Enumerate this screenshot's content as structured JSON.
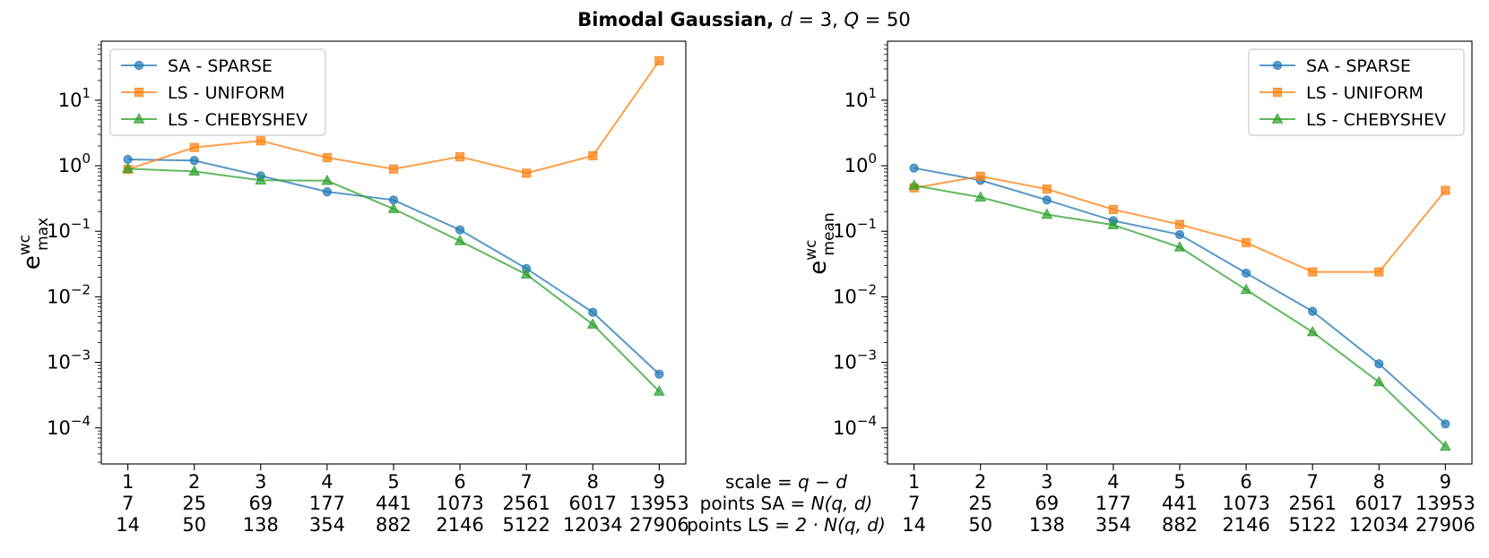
{
  "figure": {
    "title_prefix": "Bimodal Gaussian, ",
    "title_params": [
      "d",
      " = 3, ",
      "Q",
      " = 50"
    ]
  },
  "row_labels": [
    {
      "prefix": "scale = ",
      "math": "q − d"
    },
    {
      "prefix": "points SA = ",
      "math": "N(q, d)"
    },
    {
      "prefix": "points LS = ",
      "math": "2 · N(q, d)"
    }
  ],
  "colors": {
    "SA - SPARSE": "#1f77b4",
    "LS - UNIFORM": "#ff7f0e",
    "LS - CHEBYSHEV": "#2ca02c"
  },
  "chart_data": [
    {
      "type": "line",
      "ylabel": {
        "base": "e",
        "sup": "wc",
        "sub": "max"
      },
      "yscale": "log",
      "yticks": [
        "10^-4",
        "10^-3",
        "10^-2",
        "10^-1",
        "10^0",
        "10^1"
      ],
      "xticks": {
        "scale": [
          "1",
          "2",
          "3",
          "4",
          "5",
          "6",
          "7",
          "8",
          "9"
        ],
        "points_SA": [
          "7",
          "25",
          "69",
          "177",
          "441",
          "1073",
          "2561",
          "6017",
          "13953"
        ],
        "points_LS": [
          "14",
          "50",
          "138",
          "354",
          "882",
          "2146",
          "5122",
          "12034",
          "27906"
        ]
      },
      "x": [
        1,
        2,
        3,
        4,
        5,
        6,
        7,
        8,
        9
      ],
      "legend_position": "upper-left",
      "series": [
        {
          "name": "SA - SPARSE",
          "marker": "circle",
          "values": [
            1.25,
            1.2,
            0.7,
            0.4,
            0.3,
            0.105,
            0.027,
            0.0058,
            0.00066
          ]
        },
        {
          "name": "LS - UNIFORM",
          "marker": "square",
          "values": [
            0.88,
            1.9,
            2.4,
            1.33,
            0.89,
            1.37,
            0.77,
            1.42,
            40.0
          ]
        },
        {
          "name": "LS - CHEBYSHEV",
          "marker": "triangle",
          "values": [
            0.9,
            0.82,
            0.6,
            0.59,
            0.22,
            0.071,
            0.022,
            0.0038,
            0.00036
          ]
        }
      ]
    },
    {
      "type": "line",
      "ylabel": {
        "base": "e",
        "sup": "wc",
        "sub": "mean"
      },
      "yscale": "log",
      "yticks": [
        "10^-4",
        "10^-3",
        "10^-2",
        "10^-1",
        "10^0",
        "10^1"
      ],
      "xticks": {
        "scale": [
          "1",
          "2",
          "3",
          "4",
          "5",
          "6",
          "7",
          "8",
          "9"
        ],
        "points_SA": [
          "7",
          "25",
          "69",
          "177",
          "441",
          "1073",
          "2561",
          "6017",
          "13953"
        ],
        "points_LS": [
          "14",
          "50",
          "138",
          "354",
          "882",
          "2146",
          "5122",
          "12034",
          "27906"
        ]
      },
      "x": [
        1,
        2,
        3,
        4,
        5,
        6,
        7,
        8,
        9
      ],
      "legend_position": "upper-right",
      "series": [
        {
          "name": "SA - SPARSE",
          "marker": "circle",
          "values": [
            0.92,
            0.6,
            0.3,
            0.145,
            0.089,
            0.023,
            0.006,
            0.00095,
            0.000115
          ]
        },
        {
          "name": "LS - UNIFORM",
          "marker": "square",
          "values": [
            0.46,
            0.69,
            0.44,
            0.215,
            0.127,
            0.067,
            0.024,
            0.024,
            0.42
          ]
        },
        {
          "name": "LS - CHEBYSHEV",
          "marker": "triangle",
          "values": [
            0.5,
            0.33,
            0.18,
            0.125,
            0.057,
            0.0128,
            0.0029,
            0.0005,
            5.2e-05
          ]
        }
      ]
    }
  ]
}
